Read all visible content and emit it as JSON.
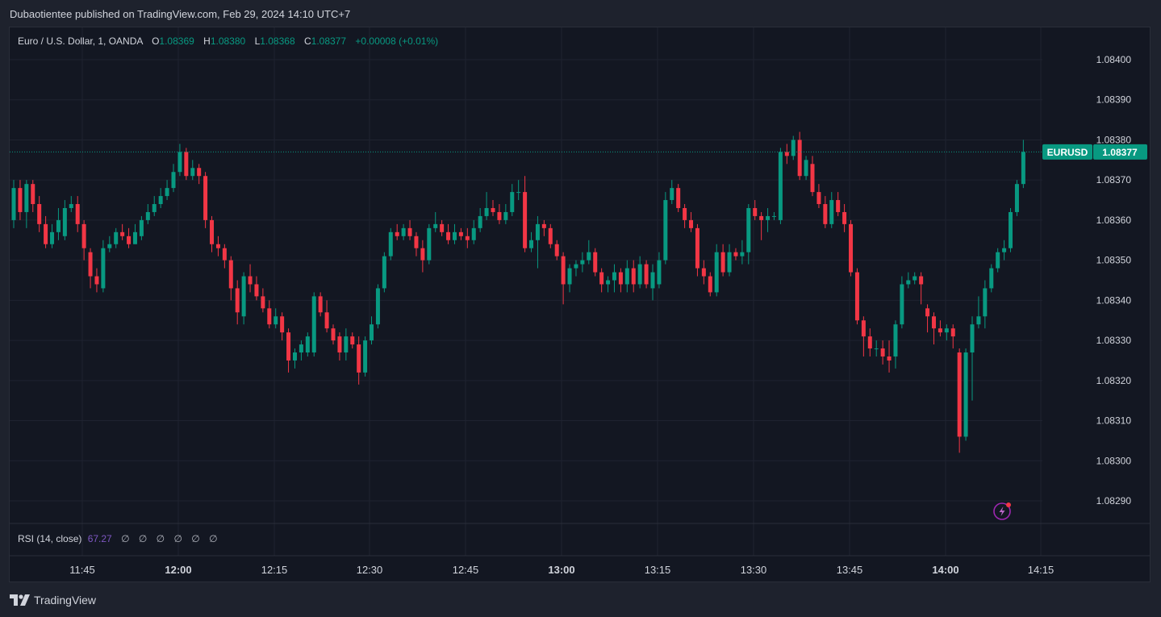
{
  "header": {
    "published_by": "Dubaotientee published on TradingView.com, Feb 29, 2024 14:10 UTC+7"
  },
  "legend": {
    "symbol": "Euro / U.S. Dollar, 1, OANDA",
    "open_label": "O",
    "open": "1.08369",
    "high_label": "H",
    "high": "1.08380",
    "low_label": "L",
    "low": "1.08368",
    "close_label": "C",
    "close": "1.08377",
    "change": "+0.00008 (+0.01%)"
  },
  "price_tag": {
    "symbol": "EURUSD",
    "value": "1.08377"
  },
  "rsi": {
    "label": "RSI (14, close)",
    "value": "67.27",
    "nulls": [
      "∅",
      "∅",
      "∅",
      "∅",
      "∅",
      "∅"
    ]
  },
  "footer": {
    "brand": "TradingView"
  },
  "colors": {
    "up": "#089981",
    "down": "#f23645",
    "grid": "#1f2330",
    "text": "#d1d4dc",
    "rsi": "#7e57c2"
  },
  "icons": {
    "alert": "lightning-icon",
    "logo": "tradingview-logo-icon"
  },
  "chart_data": {
    "type": "candlestick",
    "symbol": "EURUSD",
    "interval_minutes": 1,
    "ylim": [
      1.08285,
      1.08405
    ],
    "y_ticks": [
      "1.08400",
      "1.08390",
      "1.08380",
      "1.08370",
      "1.08360",
      "1.08350",
      "1.08340",
      "1.08330",
      "1.08320",
      "1.08310",
      "1.08300",
      "1.08290"
    ],
    "x_ticks": [
      {
        "label": "11:45",
        "bold": false
      },
      {
        "label": "12:00",
        "bold": true
      },
      {
        "label": "12:15",
        "bold": false
      },
      {
        "label": "12:30",
        "bold": false
      },
      {
        "label": "12:45",
        "bold": false
      },
      {
        "label": "13:00",
        "bold": true
      },
      {
        "label": "13:15",
        "bold": false
      },
      {
        "label": "13:30",
        "bold": false
      },
      {
        "label": "13:45",
        "bold": false
      },
      {
        "label": "14:00",
        "bold": true
      },
      {
        "label": "14:15",
        "bold": false
      }
    ],
    "last_price": 1.08377,
    "candles": [
      [
        1.0836,
        1.08368,
        1.0837,
        1.08358
      ],
      [
        1.08368,
        1.08362,
        1.0837,
        1.0836
      ],
      [
        1.08362,
        1.08369,
        1.0837,
        1.08358
      ],
      [
        1.08369,
        1.08364,
        1.0837,
        1.08362
      ],
      [
        1.08364,
        1.08359,
        1.08366,
        1.08357
      ],
      [
        1.08359,
        1.08354,
        1.08361,
        1.08353
      ],
      [
        1.08354,
        1.08357,
        1.08359,
        1.08353
      ],
      [
        1.08357,
        1.0836,
        1.08363,
        1.08355
      ],
      [
        1.08356,
        1.08363,
        1.08365,
        1.08355
      ],
      [
        1.08363,
        1.08364,
        1.08366,
        1.08362
      ],
      [
        1.08364,
        1.08359,
        1.08366,
        1.08357
      ],
      [
        1.08359,
        1.08353,
        1.0836,
        1.0835
      ],
      [
        1.08352,
        1.08346,
        1.08353,
        1.08343
      ],
      [
        1.08346,
        1.08344,
        1.08348,
        1.08342
      ],
      [
        1.08343,
        1.08353,
        1.08355,
        1.08342
      ],
      [
        1.08353,
        1.08354,
        1.08356,
        1.08352
      ],
      [
        1.08354,
        1.08357,
        1.08358,
        1.08353
      ],
      [
        1.08357,
        1.08356,
        1.08359,
        1.08355
      ],
      [
        1.08356,
        1.08354,
        1.08358,
        1.08353
      ],
      [
        1.08354,
        1.08357,
        1.08359,
        1.08354
      ],
      [
        1.08356,
        1.0836,
        1.08361,
        1.08355
      ],
      [
        1.0836,
        1.08362,
        1.08364,
        1.08359
      ],
      [
        1.08362,
        1.08364,
        1.08366,
        1.08361
      ],
      [
        1.08364,
        1.08366,
        1.08368,
        1.08363
      ],
      [
        1.08366,
        1.08368,
        1.0837,
        1.08365
      ],
      [
        1.08368,
        1.08372,
        1.08374,
        1.08367
      ],
      [
        1.08372,
        1.08377,
        1.08379,
        1.08371
      ],
      [
        1.08377,
        1.08371,
        1.08378,
        1.0837
      ],
      [
        1.08371,
        1.08373,
        1.08375,
        1.0837
      ],
      [
        1.08373,
        1.08371,
        1.08374,
        1.08369
      ],
      [
        1.08371,
        1.0836,
        1.08372,
        1.08358
      ],
      [
        1.0836,
        1.08354,
        1.08361,
        1.08352
      ],
      [
        1.08354,
        1.08353,
        1.08356,
        1.08351
      ],
      [
        1.08353,
        1.0835,
        1.08354,
        1.08348
      ],
      [
        1.0835,
        1.08343,
        1.08351,
        1.0834
      ],
      [
        1.08343,
        1.08337,
        1.08345,
        1.08334
      ],
      [
        1.08336,
        1.08346,
        1.08347,
        1.08334
      ],
      [
        1.08346,
        1.08344,
        1.08349,
        1.08342
      ],
      [
        1.08344,
        1.08341,
        1.08346,
        1.0834
      ],
      [
        1.08341,
        1.08338,
        1.08343,
        1.08337
      ],
      [
        1.08338,
        1.08334,
        1.0834,
        1.08333
      ],
      [
        1.08334,
        1.08336,
        1.08338,
        1.08333
      ],
      [
        1.08336,
        1.08332,
        1.08337,
        1.0833
      ],
      [
        1.08332,
        1.08325,
        1.08333,
        1.08322
      ],
      [
        1.08325,
        1.08327,
        1.08328,
        1.08323
      ],
      [
        1.08327,
        1.08329,
        1.0833,
        1.08325
      ],
      [
        1.08327,
        1.08331,
        1.08332,
        1.08326
      ],
      [
        1.08327,
        1.08341,
        1.08342,
        1.08326
      ],
      [
        1.08341,
        1.08337,
        1.08342,
        1.08336
      ],
      [
        1.08337,
        1.08333,
        1.0834,
        1.08332
      ],
      [
        1.08333,
        1.0833,
        1.08334,
        1.08329
      ],
      [
        1.08331,
        1.08327,
        1.08332,
        1.08325
      ],
      [
        1.08327,
        1.08331,
        1.08333,
        1.08325
      ],
      [
        1.08331,
        1.08329,
        1.08332,
        1.08328
      ],
      [
        1.08329,
        1.08322,
        1.08331,
        1.08319
      ],
      [
        1.08322,
        1.0833,
        1.08331,
        1.08321
      ],
      [
        1.0833,
        1.08334,
        1.08336,
        1.08329
      ],
      [
        1.08334,
        1.08343,
        1.08344,
        1.08333
      ],
      [
        1.08343,
        1.08351,
        1.08352,
        1.08342
      ],
      [
        1.08351,
        1.08357,
        1.08358,
        1.0835
      ],
      [
        1.08357,
        1.08356,
        1.08359,
        1.08355
      ],
      [
        1.08356,
        1.08358,
        1.08359,
        1.08355
      ],
      [
        1.08358,
        1.08356,
        1.0836,
        1.08355
      ],
      [
        1.08356,
        1.08353,
        1.08357,
        1.08351
      ],
      [
        1.08353,
        1.0835,
        1.08355,
        1.08347
      ],
      [
        1.0835,
        1.08358,
        1.08359,
        1.08349
      ],
      [
        1.08358,
        1.08359,
        1.08362,
        1.08357
      ],
      [
        1.08359,
        1.08357,
        1.0836,
        1.08356
      ],
      [
        1.08357,
        1.08355,
        1.08359,
        1.08354
      ],
      [
        1.08355,
        1.08357,
        1.08359,
        1.08354
      ],
      [
        1.08357,
        1.08356,
        1.08358,
        1.08355
      ],
      [
        1.08356,
        1.08355,
        1.08358,
        1.08353
      ],
      [
        1.08355,
        1.08358,
        1.0836,
        1.08354
      ],
      [
        1.08358,
        1.08361,
        1.08363,
        1.08357
      ],
      [
        1.08361,
        1.08363,
        1.08367,
        1.0836
      ],
      [
        1.08363,
        1.08362,
        1.08365,
        1.08361
      ],
      [
        1.08362,
        1.0836,
        1.08364,
        1.08359
      ],
      [
        1.0836,
        1.08362,
        1.08364,
        1.08359
      ],
      [
        1.08362,
        1.08367,
        1.08369,
        1.08361
      ],
      [
        1.08367,
        1.08367,
        1.0837,
        1.08365
      ],
      [
        1.08367,
        1.08353,
        1.08371,
        1.08352
      ],
      [
        1.08353,
        1.08355,
        1.08357,
        1.08352
      ],
      [
        1.08355,
        1.08359,
        1.08361,
        1.08348
      ],
      [
        1.08359,
        1.08358,
        1.0836,
        1.08356
      ],
      [
        1.08358,
        1.08354,
        1.08359,
        1.08353
      ],
      [
        1.08354,
        1.08351,
        1.08355,
        1.0835
      ],
      [
        1.08351,
        1.08344,
        1.08352,
        1.08339
      ],
      [
        1.08344,
        1.08348,
        1.08349,
        1.08342
      ],
      [
        1.08348,
        1.08349,
        1.0835,
        1.08346
      ],
      [
        1.08349,
        1.0835,
        1.08352,
        1.08347
      ],
      [
        1.0835,
        1.08352,
        1.08355,
        1.08349
      ],
      [
        1.08352,
        1.08347,
        1.08353,
        1.08346
      ],
      [
        1.08347,
        1.08344,
        1.08348,
        1.08342
      ],
      [
        1.08344,
        1.08345,
        1.08346,
        1.08342
      ],
      [
        1.08345,
        1.08347,
        1.08349,
        1.08342
      ],
      [
        1.08347,
        1.08344,
        1.08348,
        1.08342
      ],
      [
        1.08344,
        1.08348,
        1.0835,
        1.08342
      ],
      [
        1.08348,
        1.08344,
        1.0835,
        1.08342
      ],
      [
        1.08344,
        1.08349,
        1.08351,
        1.08343
      ],
      [
        1.08349,
        1.08344,
        1.0835,
        1.08343
      ],
      [
        1.08343,
        1.08347,
        1.08349,
        1.0834
      ],
      [
        1.08344,
        1.0835,
        1.08352,
        1.08343
      ],
      [
        1.0835,
        1.08365,
        1.08367,
        1.08349
      ],
      [
        1.08365,
        1.08368,
        1.0837,
        1.08364
      ],
      [
        1.08368,
        1.08363,
        1.08369,
        1.08362
      ],
      [
        1.08363,
        1.0836,
        1.08364,
        1.08358
      ],
      [
        1.0836,
        1.08358,
        1.08362,
        1.08357
      ],
      [
        1.08358,
        1.08348,
        1.08359,
        1.08346
      ],
      [
        1.08348,
        1.08346,
        1.0835,
        1.08344
      ],
      [
        1.08346,
        1.08342,
        1.08347,
        1.08341
      ],
      [
        1.08342,
        1.08352,
        1.08354,
        1.08341
      ],
      [
        1.08352,
        1.08347,
        1.08354,
        1.08346
      ],
      [
        1.08347,
        1.08352,
        1.08354,
        1.08346
      ],
      [
        1.08352,
        1.08351,
        1.08353,
        1.0835
      ],
      [
        1.08351,
        1.08352,
        1.08355,
        1.08349
      ],
      [
        1.08352,
        1.08363,
        1.08364,
        1.08349
      ],
      [
        1.08363,
        1.08361,
        1.08365,
        1.0836
      ],
      [
        1.08361,
        1.0836,
        1.08362,
        1.08355
      ],
      [
        1.0836,
        1.08361,
        1.08363,
        1.08357
      ],
      [
        1.08361,
        1.08361,
        1.08362,
        1.0836
      ],
      [
        1.0836,
        1.08377,
        1.08378,
        1.08359
      ],
      [
        1.08377,
        1.08376,
        1.08379,
        1.08374
      ],
      [
        1.08376,
        1.0838,
        1.08381,
        1.08375
      ],
      [
        1.0838,
        1.08371,
        1.08382,
        1.0837
      ],
      [
        1.08371,
        1.08375,
        1.08376,
        1.0837
      ],
      [
        1.08374,
        1.08367,
        1.08376,
        1.08366
      ],
      [
        1.08367,
        1.08364,
        1.08369,
        1.08363
      ],
      [
        1.08364,
        1.08359,
        1.08366,
        1.08358
      ],
      [
        1.08359,
        1.08365,
        1.08367,
        1.08358
      ],
      [
        1.08365,
        1.08362,
        1.08367,
        1.08361
      ],
      [
        1.08362,
        1.08359,
        1.08364,
        1.08357
      ],
      [
        1.08359,
        1.08347,
        1.0836,
        1.08346
      ],
      [
        1.08347,
        1.08335,
        1.08348,
        1.08334
      ],
      [
        1.08335,
        1.08331,
        1.08336,
        1.08326
      ],
      [
        1.08331,
        1.08328,
        1.08333,
        1.08326
      ],
      [
        1.08328,
        1.08328,
        1.0833,
        1.08326
      ],
      [
        1.08328,
        1.08326,
        1.0833,
        1.08324
      ],
      [
        1.08326,
        1.08325,
        1.0833,
        1.08322
      ],
      [
        1.08326,
        1.08334,
        1.08335,
        1.08323
      ],
      [
        1.08334,
        1.08344,
        1.08346,
        1.08333
      ],
      [
        1.08344,
        1.08345,
        1.08347,
        1.08343
      ],
      [
        1.08345,
        1.08346,
        1.08347,
        1.08344
      ],
      [
        1.08346,
        1.08344,
        1.08347,
        1.08339
      ],
      [
        1.08338,
        1.08336,
        1.08339,
        1.08332
      ],
      [
        1.08336,
        1.08333,
        1.08337,
        1.08329
      ],
      [
        1.08333,
        1.08332,
        1.08335,
        1.08331
      ],
      [
        1.08332,
        1.08333,
        1.08334,
        1.0833
      ],
      [
        1.08333,
        1.08331,
        1.08334,
        1.08328
      ],
      [
        1.08327,
        1.08306,
        1.08328,
        1.08302
      ],
      [
        1.08306,
        1.08327,
        1.08328,
        1.08305
      ],
      [
        1.08327,
        1.08334,
        1.08336,
        1.08315
      ],
      [
        1.08334,
        1.08336,
        1.08341,
        1.08333
      ],
      [
        1.08336,
        1.08343,
        1.08345,
        1.08333
      ],
      [
        1.08343,
        1.08348,
        1.08349,
        1.08342
      ],
      [
        1.08348,
        1.08352,
        1.08353,
        1.08347
      ],
      [
        1.08352,
        1.08353,
        1.08355,
        1.0835
      ],
      [
        1.08353,
        1.08362,
        1.08363,
        1.08352
      ],
      [
        1.08362,
        1.08369,
        1.0837,
        1.08361
      ],
      [
        1.08369,
        1.08377,
        1.0838,
        1.08368
      ]
    ]
  }
}
